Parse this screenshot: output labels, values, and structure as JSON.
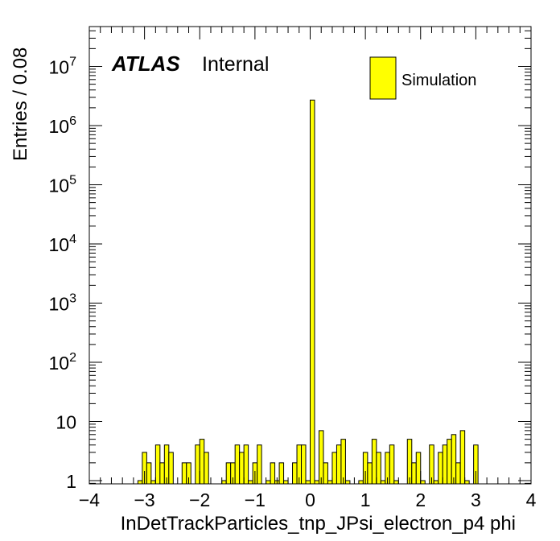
{
  "chart_data": {
    "type": "bar",
    "xlabel": "InDetTrackParticles_tnp_JPsi_electron_p4 phi",
    "ylabel": "Entries / 0.08",
    "xlim": [
      -4,
      4
    ],
    "ylim": [
      0.8,
      40000000
    ],
    "log_y": true,
    "bin_width": 0.08,
    "x_ticks": [
      "−4",
      "−3",
      "−2",
      "−1",
      "0",
      "1",
      "2",
      "3",
      "4"
    ],
    "y_ticks": [
      {
        "base": "1",
        "exp": ""
      },
      {
        "base": "10",
        "exp": ""
      },
      {
        "base": "10",
        "exp": "2"
      },
      {
        "base": "10",
        "exp": "3"
      },
      {
        "base": "10",
        "exp": "4"
      },
      {
        "base": "10",
        "exp": "5"
      },
      {
        "base": "10",
        "exp": "6"
      },
      {
        "base": "10",
        "exp": "7"
      }
    ],
    "series": [
      {
        "name": "Simulation",
        "color": "#ffff00",
        "edges": [
          -3.2,
          -3.12,
          -3.04,
          -2.96,
          -2.88,
          -2.8,
          -2.72,
          -2.64,
          -2.56,
          -2.48,
          -2.4,
          -2.32,
          -2.24,
          -2.16,
          -2.08,
          -2.0,
          -1.92,
          -1.84,
          -1.76,
          -1.68,
          -1.6,
          -1.52,
          -1.44,
          -1.36,
          -1.28,
          -1.2,
          -1.12,
          -1.04,
          -0.96,
          -0.88,
          -0.8,
          -0.72,
          -0.64,
          -0.56,
          -0.48,
          -0.4,
          -0.32,
          -0.24,
          -0.16,
          -0.08,
          0.0,
          0.08,
          0.16,
          0.24,
          0.32,
          0.4,
          0.48,
          0.56,
          0.64,
          0.72,
          0.8,
          0.88,
          0.96,
          1.04,
          1.12,
          1.2,
          1.28,
          1.36,
          1.44,
          1.52,
          1.6,
          1.68,
          1.76,
          1.84,
          1.92,
          2.0,
          2.08,
          2.16,
          2.24,
          2.32,
          2.4,
          2.48,
          2.56,
          2.64,
          2.72,
          2.8,
          2.88,
          2.96,
          3.04,
          3.12,
          3.2
        ],
        "values": [
          0,
          1,
          3,
          2,
          1,
          4,
          2,
          4,
          3,
          0,
          0,
          2,
          2,
          0,
          4,
          5,
          3,
          0,
          0,
          0,
          1,
          2,
          2,
          4,
          3,
          4,
          1,
          2,
          4,
          0,
          1,
          2,
          1,
          2,
          1,
          0,
          2,
          4,
          4,
          1,
          2700000,
          1,
          7,
          2,
          1,
          3,
          4,
          5,
          1,
          0,
          0,
          1,
          3,
          2,
          5,
          3,
          1,
          3,
          4,
          1,
          0,
          0,
          5,
          2,
          3,
          1,
          0,
          4,
          1,
          3,
          4,
          5,
          6,
          2,
          7,
          1,
          0,
          4,
          0,
          0
        ]
      }
    ],
    "legend": {
      "position": "top-right",
      "entries": [
        "Simulation"
      ]
    },
    "annotations": {
      "atlas": "ATLAS",
      "status": "Internal"
    }
  }
}
